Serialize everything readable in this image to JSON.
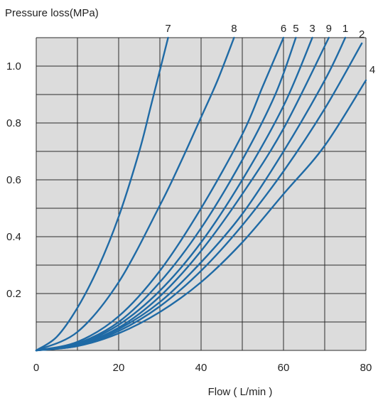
{
  "chart_data": {
    "type": "line",
    "title": "",
    "ylabel": "Pressure loss(MPa)",
    "xlabel": "Flow ( L/min )",
    "xlim": [
      0,
      80
    ],
    "ylim": [
      0,
      1.1
    ],
    "x_ticks": [
      0,
      20,
      40,
      60,
      80
    ],
    "y_ticks": [
      0.2,
      0.4,
      0.6,
      0.8,
      1.0
    ],
    "y_tick_labels": [
      "0.2",
      "0.4",
      "0.6",
      "0.8",
      "1.0"
    ],
    "x_tick_labels": [
      "0",
      "20",
      "40",
      "60",
      "80"
    ],
    "grid": true,
    "background_color": "#dcdcdc",
    "line_color": "#1f6aa5",
    "series": [
      {
        "name": "7",
        "x": [
          0,
          5,
          10,
          15,
          20,
          25,
          28,
          32
        ],
        "y": [
          0,
          0.048,
          0.15,
          0.29,
          0.47,
          0.7,
          0.87,
          1.1
        ]
      },
      {
        "name": "8",
        "x": [
          0,
          10,
          20,
          30,
          35,
          40,
          44,
          48
        ],
        "y": [
          0,
          0.065,
          0.24,
          0.51,
          0.66,
          0.82,
          0.95,
          1.1
        ]
      },
      {
        "name": "6",
        "x": [
          0,
          10,
          20,
          30,
          40,
          50,
          55,
          60
        ],
        "y": [
          0,
          0.03,
          0.12,
          0.28,
          0.5,
          0.76,
          0.93,
          1.1
        ]
      },
      {
        "name": "5",
        "x": [
          0,
          10,
          20,
          30,
          40,
          50,
          58,
          63
        ],
        "y": [
          0,
          0.025,
          0.1,
          0.24,
          0.43,
          0.67,
          0.9,
          1.1
        ]
      },
      {
        "name": "3",
        "x": [
          0,
          10,
          20,
          30,
          40,
          50,
          60,
          67
        ],
        "y": [
          0,
          0.022,
          0.09,
          0.21,
          0.38,
          0.6,
          0.86,
          1.1
        ]
      },
      {
        "name": "9",
        "x": [
          0,
          10,
          20,
          30,
          40,
          50,
          60,
          71
        ],
        "y": [
          0,
          0.02,
          0.08,
          0.19,
          0.35,
          0.55,
          0.78,
          1.1
        ]
      },
      {
        "name": "1",
        "x": [
          0,
          10,
          20,
          30,
          40,
          50,
          60,
          70,
          75
        ],
        "y": [
          0,
          0.018,
          0.075,
          0.17,
          0.31,
          0.48,
          0.7,
          0.95,
          1.1
        ]
      },
      {
        "name": "2",
        "x": [
          0,
          10,
          20,
          30,
          40,
          50,
          60,
          70,
          79
        ],
        "y": [
          0,
          0.016,
          0.068,
          0.155,
          0.28,
          0.44,
          0.63,
          0.85,
          1.08
        ]
      },
      {
        "name": "4",
        "x": [
          0,
          10,
          20,
          30,
          40,
          50,
          60,
          70,
          80
        ],
        "y": [
          0,
          0.015,
          0.06,
          0.135,
          0.24,
          0.38,
          0.55,
          0.72,
          0.95
        ]
      }
    ]
  }
}
